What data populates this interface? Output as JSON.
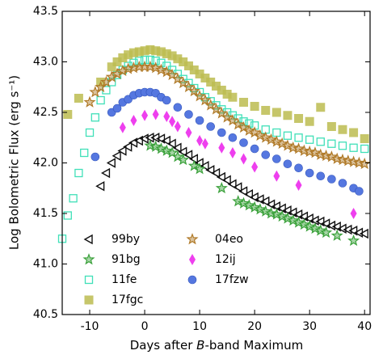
{
  "chart_data": {
    "type": "scatter",
    "xlabel_parts": [
      "Days after ",
      "B",
      "-band Maximum"
    ],
    "ylabel": "Log Bolometric Flux (erg s⁻¹)",
    "xlim": [
      -15,
      41
    ],
    "ylim": [
      40.5,
      43.5
    ],
    "xticks": [
      -10,
      0,
      10,
      20,
      30,
      40
    ],
    "yticks": [
      40.5,
      {
        "value": 41,
        "label": "41.0"
      },
      41.5,
      {
        "value": 42,
        "label": "42.0"
      },
      42.5,
      {
        "value": 43,
        "label": "43.0"
      },
      43.5
    ],
    "legend": "lower left",
    "series": [
      {
        "name": "99by",
        "color": "#111111",
        "marker": "triangle-left",
        "x": [
          -8,
          -7,
          -6,
          -5,
          -4,
          -3,
          -2,
          -1,
          0,
          1,
          2,
          3,
          4,
          5,
          6,
          7,
          8,
          9,
          10,
          11,
          12,
          13,
          14,
          15,
          16,
          17,
          18,
          19,
          20,
          21,
          22,
          23,
          24,
          25,
          26,
          27,
          28,
          29,
          30,
          31,
          32,
          33,
          34,
          35,
          36,
          37,
          38,
          39,
          40
        ],
        "values": [
          41.77,
          41.9,
          42.0,
          42.07,
          42.12,
          42.16,
          42.2,
          42.22,
          42.24,
          42.25,
          42.25,
          42.24,
          42.22,
          42.19,
          42.15,
          42.11,
          42.08,
          42.04,
          42.0,
          41.97,
          41.93,
          41.9,
          41.86,
          41.83,
          41.79,
          41.76,
          41.72,
          41.69,
          41.66,
          41.64,
          41.62,
          41.59,
          41.57,
          41.55,
          41.53,
          41.51,
          41.49,
          41.47,
          41.45,
          41.43,
          41.42,
          41.4,
          41.38,
          41.37,
          41.35,
          41.34,
          41.33,
          41.31,
          41.3
        ]
      },
      {
        "name": "91bg",
        "color": "#3aa13a",
        "marker": "star",
        "x": [
          1,
          2,
          3,
          4,
          5,
          6,
          7,
          9,
          10,
          14,
          17,
          18,
          19,
          20,
          21,
          22,
          23,
          24,
          25,
          26,
          27,
          28,
          29,
          30,
          31,
          32,
          33,
          35,
          38
        ],
        "values": [
          42.17,
          42.16,
          42.14,
          42.12,
          42.1,
          42.06,
          42.03,
          41.97,
          41.94,
          41.75,
          41.62,
          41.6,
          41.58,
          41.56,
          41.54,
          41.52,
          41.5,
          41.49,
          41.47,
          41.45,
          41.43,
          41.41,
          41.39,
          41.37,
          41.35,
          41.33,
          41.31,
          41.28,
          41.23
        ]
      },
      {
        "name": "11fe",
        "color": "#40e0b8",
        "marker": "square-open",
        "x": [
          -15,
          -14,
          -13,
          -12,
          -11,
          -10,
          -9,
          -8,
          -7,
          -6,
          -5,
          -4,
          -3,
          -2,
          -1,
          0,
          1,
          2,
          3,
          4,
          5,
          6,
          7,
          8,
          9,
          10,
          11,
          12,
          13,
          14,
          15,
          16,
          17,
          18,
          19,
          20,
          22,
          24,
          26,
          28,
          30,
          32,
          34,
          36,
          38,
          40
        ],
        "values": [
          41.25,
          41.48,
          41.65,
          41.9,
          42.1,
          42.3,
          42.45,
          42.62,
          42.72,
          42.8,
          42.87,
          42.92,
          42.96,
          42.99,
          43.01,
          43.02,
          43.02,
          43.01,
          42.99,
          42.96,
          42.92,
          42.88,
          42.83,
          42.79,
          42.74,
          42.7,
          42.65,
          42.61,
          42.57,
          42.53,
          42.5,
          42.47,
          42.44,
          42.41,
          42.39,
          42.37,
          42.33,
          42.3,
          42.27,
          42.25,
          42.23,
          42.21,
          42.19,
          42.17,
          42.15,
          42.14
        ]
      },
      {
        "name": "17fgc",
        "color": "#bcbc50",
        "marker": "square",
        "x": [
          -14,
          -12,
          -8,
          -6,
          -5,
          -4,
          -3,
          -2,
          -1,
          0,
          1,
          2,
          3,
          4,
          5,
          6,
          7,
          8,
          9,
          10,
          11,
          12,
          13,
          14,
          15,
          16,
          18,
          20,
          22,
          24,
          26,
          28,
          30,
          32,
          34,
          36,
          38,
          40
        ],
        "values": [
          42.48,
          42.64,
          42.8,
          42.95,
          43.0,
          43.04,
          43.07,
          43.09,
          43.1,
          43.11,
          43.12,
          43.11,
          43.1,
          43.08,
          43.06,
          43.03,
          43.0,
          42.96,
          42.92,
          42.88,
          42.84,
          42.8,
          42.76,
          42.72,
          42.68,
          42.65,
          42.6,
          42.56,
          42.52,
          42.5,
          42.47,
          42.44,
          42.41,
          42.55,
          42.36,
          42.33,
          42.3,
          42.24
        ]
      },
      {
        "name": "04eo",
        "color": "#b07a28",
        "marker": "star",
        "x": [
          -10,
          -9,
          -8,
          -7,
          -6,
          -5,
          -4,
          -3,
          -2,
          -1,
          0,
          1,
          2,
          3,
          4,
          5,
          6,
          7,
          8,
          9,
          10,
          11,
          12,
          13,
          14,
          15,
          16,
          17,
          18,
          19,
          20,
          21,
          22,
          23,
          24,
          25,
          26,
          27,
          28,
          29,
          30,
          31,
          32,
          33,
          34,
          35,
          36,
          37,
          38,
          39,
          40
        ],
        "values": [
          42.6,
          42.7,
          42.75,
          42.8,
          42.85,
          42.88,
          42.91,
          42.93,
          42.94,
          42.95,
          42.95,
          42.95,
          42.94,
          42.92,
          42.9,
          42.87,
          42.83,
          42.79,
          42.75,
          42.71,
          42.66,
          42.62,
          42.57,
          42.53,
          42.49,
          42.45,
          42.42,
          42.38,
          42.35,
          42.32,
          42.3,
          42.27,
          42.25,
          42.23,
          42.21,
          42.19,
          42.17,
          42.15,
          42.14,
          42.12,
          42.11,
          42.1,
          42.08,
          42.07,
          42.06,
          42.04,
          42.03,
          42.02,
          42.01,
          42.0,
          41.99
        ]
      },
      {
        "name": "12ij",
        "color": "#ee3fee",
        "marker": "diamond",
        "x": [
          -4,
          -2,
          0,
          2,
          4,
          5,
          6,
          8,
          10,
          11,
          14,
          16,
          18,
          20,
          24,
          28,
          38
        ],
        "values": [
          42.35,
          42.42,
          42.47,
          42.48,
          42.46,
          42.41,
          42.36,
          42.3,
          42.22,
          42.19,
          42.15,
          42.1,
          42.04,
          41.96,
          41.87,
          41.78,
          41.5
        ]
      },
      {
        "name": "17fzw",
        "color": "#5577e0",
        "marker": "circle",
        "x": [
          -9,
          -6,
          -5,
          -4,
          -3,
          -2,
          -1,
          0,
          1,
          2,
          3,
          4,
          6,
          8,
          10,
          12,
          14,
          16,
          18,
          20,
          22,
          24,
          26,
          28,
          30,
          32,
          34,
          36,
          38,
          39
        ],
        "values": [
          42.06,
          42.5,
          42.54,
          42.6,
          42.63,
          42.67,
          42.69,
          42.7,
          42.7,
          42.69,
          42.65,
          42.62,
          42.55,
          42.48,
          42.42,
          42.36,
          42.3,
          42.25,
          42.2,
          42.14,
          42.08,
          42.04,
          41.99,
          41.95,
          41.9,
          41.87,
          41.84,
          41.8,
          41.75,
          41.72
        ]
      }
    ]
  }
}
